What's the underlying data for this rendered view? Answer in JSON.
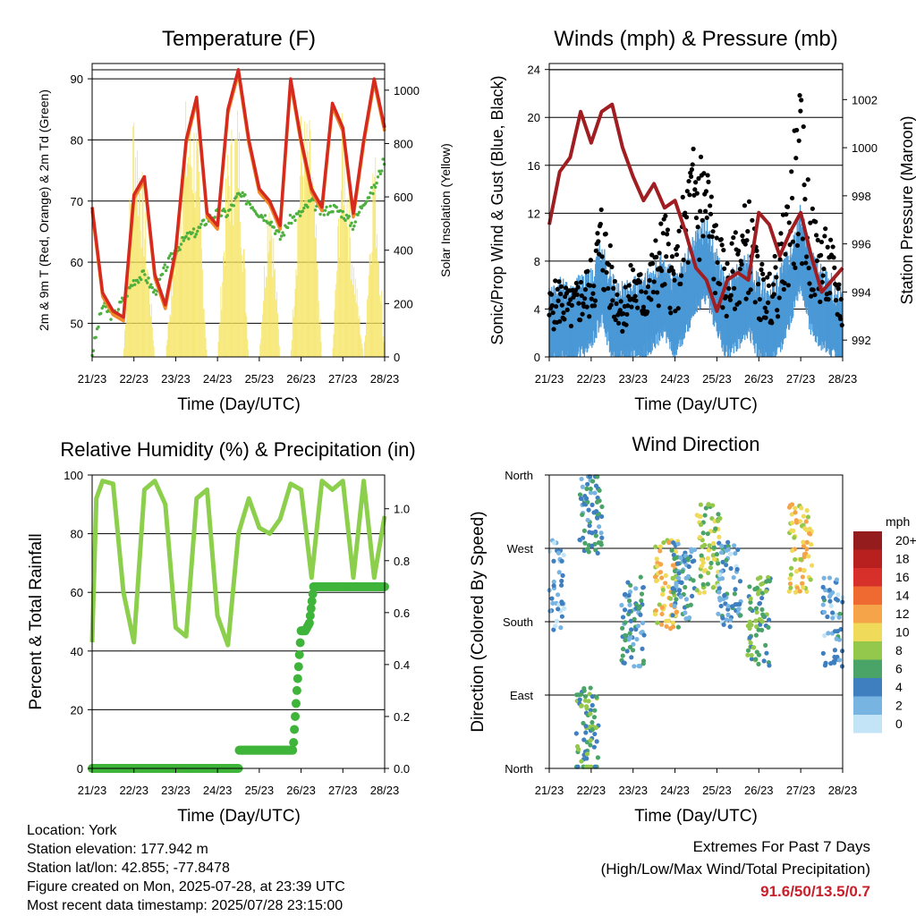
{
  "time_ticks": [
    "21/23",
    "22/23",
    "23/23",
    "24/23",
    "25/23",
    "26/23",
    "27/23",
    "28/23"
  ],
  "colors": {
    "t2m": "#d62a1e",
    "t9m": "#f08a2a",
    "td": "#4db03e",
    "solar": "#f5e35a",
    "wind": "#4a98d6",
    "gust": "#000000",
    "pressure": "#a01e22",
    "rh": "#8ccf4c",
    "precip": "#3fb43a",
    "extremes": "#c8202a"
  },
  "panel_temp": {
    "title": "Temperature (F)",
    "xlabel": "Time (Day/UTC)",
    "ylabel_left": "2m & 9m T (Red, Orange) & 2m Td (Green)",
    "ylabel_right": "Solar Insolation (Yellow)",
    "left_ticks": [
      "50",
      "60",
      "70",
      "80",
      "90"
    ],
    "right_ticks": [
      "0",
      "200",
      "400",
      "600",
      "800",
      "1000"
    ]
  },
  "panel_wind": {
    "title": "Winds (mph) & Pressure (mb)",
    "xlabel": "Time (Day/UTC)",
    "ylabel_left": "Sonic/Prop Wind & Gust (Blue, Black)",
    "ylabel_right": "Station Pressure (Maroon)",
    "left_ticks": [
      "0",
      "4",
      "8",
      "12",
      "16",
      "20",
      "24"
    ],
    "right_ticks": [
      "992",
      "994",
      "996",
      "998",
      "1000",
      "1002"
    ]
  },
  "panel_rh": {
    "title": "Relative Humidity (%) & Precipitation (in)",
    "xlabel": "Time (Day/UTC)",
    "ylabel_left": "Percent & Total Rainfall",
    "left_ticks": [
      "0",
      "20",
      "40",
      "60",
      "80",
      "100"
    ],
    "right_ticks": [
      "0.0",
      "0.2",
      "0.4",
      "0.6",
      "0.8",
      "1.0"
    ]
  },
  "panel_dir": {
    "title": "Wind Direction",
    "xlabel": "Time (Day/UTC)",
    "ylabel_left": "Direction (Colored By Speed)",
    "left_ticks": [
      "North",
      "East",
      "South",
      "West",
      "North"
    ],
    "legend_title": "mph",
    "legend_labels": [
      "20+",
      "18",
      "16",
      "14",
      "12",
      "10",
      "8",
      "6",
      "4",
      "2",
      "0"
    ],
    "legend_colors": [
      "#951c1c",
      "#b82020",
      "#d7302a",
      "#ee6a30",
      "#f6a44a",
      "#f0da5a",
      "#94c84c",
      "#4aa468",
      "#3f7fbf",
      "#78b4e2",
      "#c3e4f6"
    ]
  },
  "footer": {
    "location": "Location: York",
    "elevation": "Station elevation: 177.942 m",
    "latlon": "Station lat/lon: 42.855; -77.8478",
    "created": "Figure created on Mon, 2025-07-28, at 23:39 UTC",
    "recent": "Most recent data timestamp: 2025/07/28 23:15:00"
  },
  "extremes": {
    "title": "Extremes For Past 7 Days",
    "subtitle": "(High/Low/Max Wind/Total Precipitation)",
    "values": "91.6/50/13.5/0.7"
  },
  "chart_data": [
    {
      "type": "line",
      "title": "Temperature (F)",
      "xlabel": "Time (Day/UTC)",
      "ylabel": "2m & 9m T (Red, Orange) & 2m Td (Green)",
      "ylabel_right": "Solar Insolation (Yellow)",
      "x_range": [
        "21/23",
        "28/23"
      ],
      "ylim": [
        44.5,
        92.5
      ],
      "ylim_right": [
        0,
        1100
      ],
      "x": [
        0,
        0.25,
        0.5,
        0.75,
        1,
        1.25,
        1.5,
        1.75,
        2,
        2.25,
        2.5,
        2.75,
        3,
        3.25,
        3.5,
        3.75,
        4,
        4.25,
        4.5,
        4.75,
        5,
        5.25,
        5.5,
        5.75,
        6,
        6.25,
        6.5,
        6.75,
        7
      ],
      "series": [
        {
          "name": "2m T",
          "axis": "left",
          "values": [
            69,
            55,
            52,
            51,
            71,
            74,
            58,
            53,
            62,
            80,
            87,
            68,
            66,
            85,
            91.5,
            80,
            72,
            70,
            66,
            90,
            80,
            72,
            69,
            86,
            82,
            68,
            80,
            90,
            82
          ]
        },
        {
          "name": "2m Td",
          "axis": "left",
          "values": [
            45,
            53,
            51,
            54,
            57,
            58,
            55,
            59,
            62,
            64,
            65,
            67,
            68,
            68,
            71,
            70,
            68,
            67,
            64,
            67,
            68,
            70,
            68,
            69,
            68,
            66,
            70,
            72,
            77
          ]
        },
        {
          "name": "Solar Insolation",
          "axis": "right",
          "values": [
            0,
            0,
            0,
            0,
            1000,
            600,
            0,
            0,
            500,
            950,
            900,
            0,
            0,
            800,
            950,
            0,
            0,
            750,
            0,
            0,
            900,
            850,
            0,
            0,
            950,
            400,
            0,
            850,
            0
          ]
        }
      ]
    },
    {
      "type": "scatter",
      "title": "Winds (mph) & Pressure (mb)",
      "xlabel": "Time (Day/UTC)",
      "ylabel": "Sonic/Prop Wind & Gust (Blue, Black)",
      "ylabel_right": "Station Pressure (Maroon)",
      "ylim": [
        0,
        24.5
      ],
      "ylim_right": [
        991.3,
        1003.5
      ],
      "x": [
        0,
        0.25,
        0.5,
        0.75,
        1,
        1.25,
        1.5,
        1.75,
        2,
        2.25,
        2.5,
        2.75,
        3,
        3.25,
        3.5,
        3.75,
        4,
        4.25,
        4.5,
        4.75,
        5,
        5.25,
        5.5,
        5.75,
        6,
        6.25,
        6.5,
        6.75,
        7
      ],
      "series": [
        {
          "name": "Sonic/Prop Wind",
          "axis": "left",
          "values": [
            2,
            3,
            2.5,
            3,
            4,
            6,
            3,
            2.5,
            3,
            3,
            4,
            5,
            3,
            5,
            7,
            8,
            5,
            3,
            4,
            5,
            3,
            2.5,
            3.5,
            6,
            9,
            5,
            4,
            3,
            2
          ]
        },
        {
          "name": "Gust",
          "axis": "left",
          "values": [
            4,
            5,
            4,
            5,
            6,
            10,
            6,
            4,
            6,
            5,
            7,
            9,
            6,
            11,
            14,
            13,
            8,
            6,
            8,
            10,
            6,
            5,
            7,
            12,
            16,
            9,
            8,
            7,
            4
          ]
        },
        {
          "name": "Station Pressure",
          "axis": "right",
          "values": [
            996.8,
            999,
            999.6,
            1001.5,
            1000.2,
            1001.5,
            1001.8,
            1000,
            998.8,
            997.8,
            998.5,
            997.5,
            997.8,
            996.5,
            995,
            994.5,
            993.2,
            994.5,
            994.8,
            994.5,
            997.3,
            996.8,
            995.5,
            996.5,
            997.3,
            995.5,
            994,
            994.5,
            995
          ]
        }
      ]
    },
    {
      "type": "line",
      "title": "Relative Humidity (%) & Precipitation (in)",
      "xlabel": "Time (Day/UTC)",
      "ylabel": "Percent & Total Rainfall",
      "ylim": [
        0,
        100
      ],
      "ylim_right": [
        0,
        1.13
      ],
      "x": [
        0,
        0.1,
        0.25,
        0.5,
        0.75,
        1,
        1.25,
        1.5,
        1.75,
        2,
        2.25,
        2.5,
        2.75,
        3,
        3.25,
        3.5,
        3.75,
        4,
        4.25,
        4.5,
        4.75,
        5,
        5.25,
        5.5,
        5.75,
        6,
        6.25,
        6.5,
        6.75,
        7
      ],
      "series": [
        {
          "name": "Relative Humidity",
          "axis": "left",
          "values": [
            43,
            92,
            98,
            97,
            60,
            43,
            95,
            98,
            90,
            48,
            45,
            92,
            95,
            52,
            42,
            80,
            92,
            82,
            80,
            85,
            97,
            95,
            65,
            98,
            95,
            98,
            65,
            98,
            65,
            86
          ]
        },
        {
          "name": "Total Precipitation",
          "axis": "right",
          "x": [
            0,
            3.5,
            3.52,
            4.8,
            4.82,
            4.9,
            5.0,
            5.1,
            5.2,
            5.3,
            6.95,
            7
          ],
          "values": [
            0,
            0,
            0.07,
            0.07,
            0.1,
            0.3,
            0.53,
            0.53,
            0.56,
            0.7,
            0.7,
            0.7
          ]
        }
      ]
    },
    {
      "type": "scatter",
      "title": "Wind Direction",
      "xlabel": "Time (Day/UTC)",
      "ylabel": "Direction (Colored By Speed)",
      "ylim_labels": [
        "North",
        "East",
        "South",
        "West",
        "North"
      ],
      "color_scale_mph": [
        0,
        2,
        4,
        6,
        8,
        10,
        12,
        14,
        16,
        18,
        20
      ],
      "clusters": [
        {
          "x": 0.1,
          "dir": "South-West",
          "speed": 2
        },
        {
          "x": 0.9,
          "dir": "North-East",
          "speed": 6
        },
        {
          "x": 1.0,
          "dir": "North-West",
          "speed": 4
        },
        {
          "x": 2.0,
          "dir": "South",
          "speed": 4
        },
        {
          "x": 2.8,
          "dir": "South-West",
          "speed": 10
        },
        {
          "x": 3.2,
          "dir": "South-West",
          "speed": 4
        },
        {
          "x": 3.8,
          "dir": "West",
          "speed": 8
        },
        {
          "x": 4.3,
          "dir": "South-West",
          "speed": 3
        },
        {
          "x": 5.0,
          "dir": "South",
          "speed": 6
        },
        {
          "x": 6.0,
          "dir": "West",
          "speed": 10
        },
        {
          "x": 6.8,
          "dir": "South",
          "speed": 3
        }
      ]
    }
  ]
}
